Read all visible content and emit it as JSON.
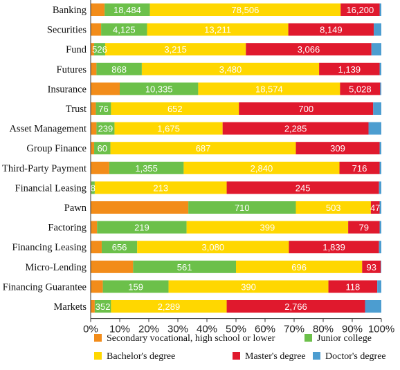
{
  "chart_data": {
    "type": "bar",
    "orientation": "horizontal",
    "stacked": "percent",
    "categories": [
      "Banking",
      "Securities",
      "Fund",
      "Futures",
      "Insurance",
      "Trust",
      "Asset Management",
      "Group Finance",
      "Third-Party Payment",
      "Financial Leasing",
      "Pawn",
      "Factoring",
      "Financing Leasing",
      "Micro-Lending",
      "Financing Guarantee",
      "Markets"
    ],
    "series": [
      {
        "name": "Secondary vocational, high school or lower",
        "color": "#F28C1A",
        "shares": [
          4.8,
          3.6,
          1.2,
          2.0,
          10.0,
          1.8,
          2.0,
          1.2,
          6.4,
          0.2,
          33.6,
          2.2,
          3.8,
          14.6,
          4.2,
          1.4
        ],
        "labels": [
          null,
          null,
          null,
          null,
          null,
          null,
          null,
          null,
          null,
          null,
          null,
          null,
          null,
          null,
          null,
          null
        ]
      },
      {
        "name": "Junior college",
        "color": "#6CC04A",
        "shares": [
          15.6,
          15.8,
          3.8,
          15.6,
          27.0,
          5.2,
          6.2,
          5.6,
          25.6,
          1.2,
          37.0,
          30.8,
          12.2,
          35.4,
          22.6,
          5.6
        ],
        "labels": [
          "18,484",
          "4,125",
          "526",
          "868",
          "10,335",
          "76",
          "239",
          "60",
          "1,355",
          "8",
          "710",
          "219",
          "656",
          "561",
          "159",
          "352"
        ]
      },
      {
        "name": "Bachelor's degree",
        "color": "#FFD700",
        "shares": [
          65.6,
          48.6,
          48.4,
          61.0,
          48.8,
          44.0,
          37.2,
          63.8,
          53.6,
          45.4,
          25.8,
          55.6,
          52.2,
          43.4,
          55.0,
          39.8
        ],
        "labels": [
          "78,506",
          "13,211",
          "3,215",
          "3,480",
          "18,574",
          "652",
          "1,675",
          "687",
          "2,840",
          "213",
          "503",
          "399",
          "3,080",
          "696",
          "390",
          "2,289"
        ]
      },
      {
        "name": "Master's degree",
        "color": "#E0192D",
        "shares": [
          13.4,
          29.4,
          43.2,
          20.8,
          13.8,
          46.2,
          50.2,
          28.8,
          13.8,
          52.4,
          3.0,
          10.8,
          31.0,
          6.4,
          16.8,
          47.6
        ],
        "labels": [
          "16,200",
          "8,149",
          "3,066",
          "1,139",
          "5,028",
          "700",
          "2,285",
          "309",
          "716",
          "245",
          "47",
          "79",
          "1,839",
          "93",
          "118",
          "2,766"
        ]
      },
      {
        "name": "Doctor's degree",
        "color": "#4C9DD0",
        "shares": [
          0.6,
          2.6,
          3.4,
          0.6,
          0.4,
          2.8,
          4.4,
          0.6,
          0.6,
          0.8,
          0.6,
          0.6,
          0.8,
          0.2,
          1.4,
          5.6
        ],
        "labels": [
          null,
          null,
          null,
          null,
          null,
          null,
          null,
          null,
          null,
          null,
          null,
          null,
          null,
          null,
          null,
          null
        ]
      }
    ],
    "x_ticks": [
      "0%",
      "10%",
      "20%",
      "30%",
      "40%",
      "50%",
      "60%",
      "70%",
      "80%",
      "90%",
      "100%"
    ],
    "xlim": [
      0,
      100
    ],
    "title": "",
    "xlabel": "",
    "ylabel": "",
    "grid": false,
    "legend_position": "bottom"
  }
}
